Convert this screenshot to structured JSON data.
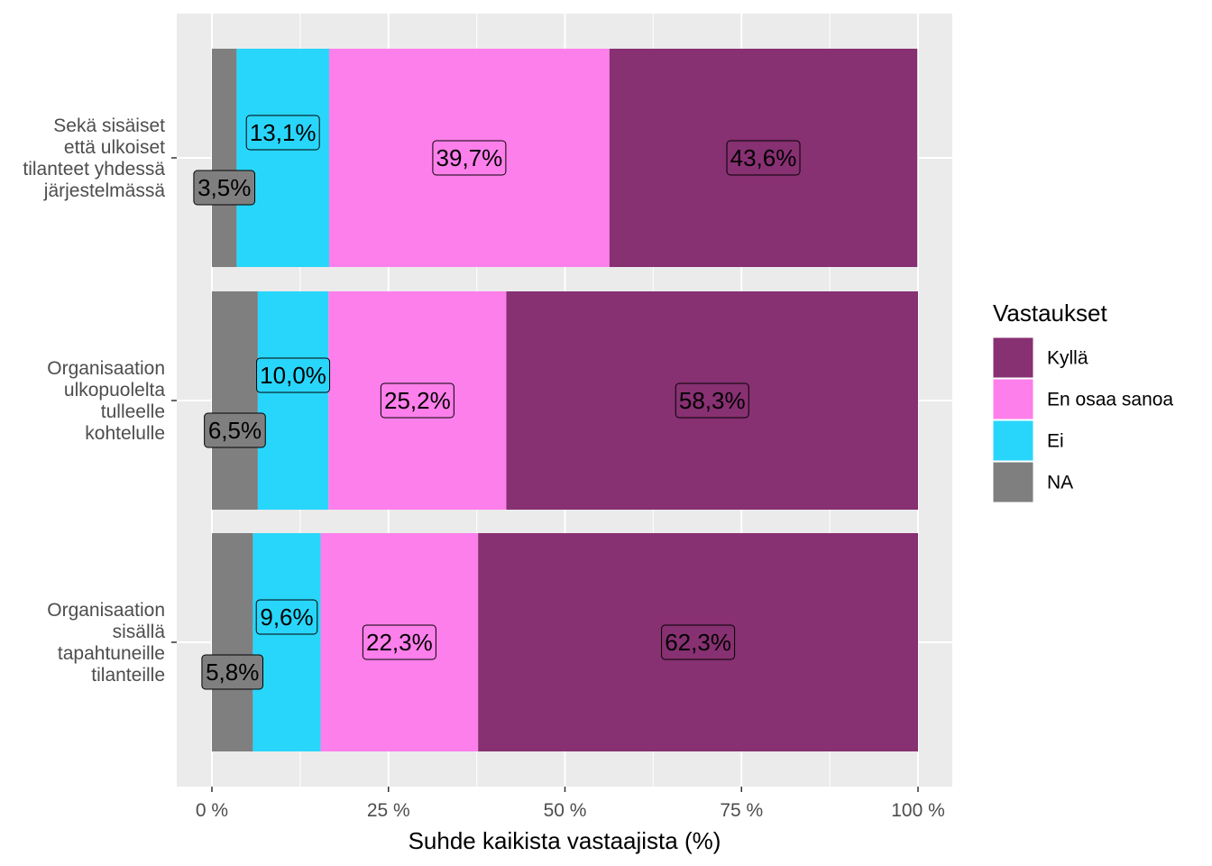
{
  "chart_data": {
    "type": "bar",
    "orientation": "horizontal",
    "stacked": true,
    "categories": [
      "Sekä sisäiset että ulkoiset tilanteet yhdessä järjestelmässä",
      "Organisaation ulkopuolelta tulleelle kohtelulle",
      "Organisaation sisällä tapahtuneille tilanteille"
    ],
    "category_lines": [
      [
        "Sekä sisäiset",
        "että ulkoiset",
        "tilanteet yhdessä",
        "järjestelmässä"
      ],
      [
        "Organisaation",
        "ulkopuolelta",
        "tulleelle",
        "kohtelulle"
      ],
      [
        "Organisaation",
        "sisällä",
        "tapahtuneille",
        "tilanteille"
      ]
    ],
    "series": [
      {
        "name": "NA",
        "color": "#7f7f7f",
        "values": [
          3.5,
          6.5,
          5.8
        ],
        "labels": [
          "3,5%",
          "6,5%",
          "5,8%"
        ]
      },
      {
        "name": "Ei",
        "color": "#29d6fb",
        "values": [
          13.1,
          10.0,
          9.6
        ],
        "labels": [
          "13,1%",
          "10,0%",
          "9,6%"
        ]
      },
      {
        "name": "En osaa sanoa",
        "color": "#fd7feb",
        "values": [
          39.7,
          25.2,
          22.3
        ],
        "labels": [
          "39,7%",
          "25,2%",
          "22,3%"
        ]
      },
      {
        "name": "Kyllä",
        "color": "#873072",
        "values": [
          43.6,
          58.3,
          62.3
        ],
        "labels": [
          "43,6%",
          "58,3%",
          "62,3%"
        ]
      }
    ],
    "xlabel": "Suhde kaikista vastaajista (%)",
    "ylabel": "",
    "xlim": [
      0,
      100
    ],
    "x_ticks": [
      0,
      25,
      50,
      75,
      100
    ],
    "x_tick_labels": [
      "0 %",
      "25 %",
      "50 %",
      "75 %",
      "100 %"
    ],
    "grid": true,
    "panel_background": "#ebebeb",
    "legend": {
      "title": "Vastaukset",
      "position": "right",
      "order": [
        "Kyllä",
        "En osaa sanoa",
        "Ei",
        "NA"
      ]
    }
  }
}
